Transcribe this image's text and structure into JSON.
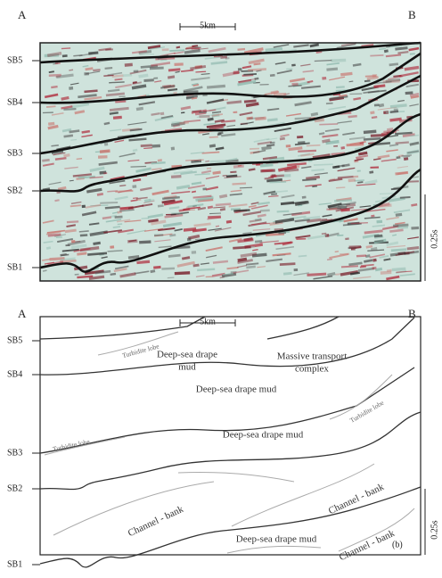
{
  "panel_a": {
    "left_end": "A",
    "right_end": "B",
    "scale_bar": "5km",
    "time_scale": "0.25s",
    "boundaries": [
      "SB5",
      "SB4",
      "SB3",
      "SB2",
      "SB1"
    ]
  },
  "panel_b": {
    "left_end": "A",
    "right_end": "B",
    "scale_bar": "5km",
    "time_scale": "0.25s",
    "boundaries": [
      "SB5",
      "SB4",
      "SB3",
      "SB2",
      "SB1"
    ],
    "units": [
      [
        "Turbidite lobe"
      ],
      [
        "Deep-sea drape",
        "mud"
      ],
      [
        "Massive transport",
        "complex"
      ],
      [
        "Turbidite lobe"
      ],
      [
        "Deep-sea drape mud"
      ],
      [
        "Turbidite lobe"
      ],
      [
        "Deep-sea drape mud"
      ],
      [
        "Channel - bank"
      ],
      [
        "Channel - bank"
      ],
      [
        "Deep-sea drape mud"
      ],
      [
        "Channel - bank"
      ]
    ],
    "panel_label": "(b)"
  }
}
